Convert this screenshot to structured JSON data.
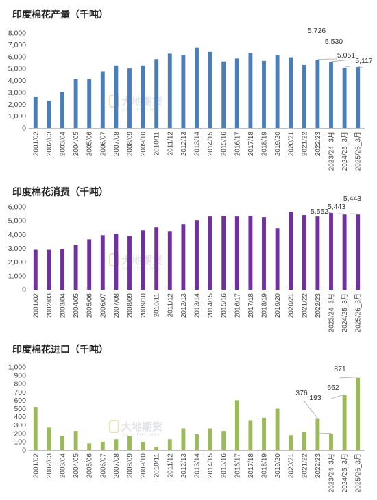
{
  "watermark": {
    "name": "大地期货",
    "sub": "DADI FUTURES"
  },
  "chart_data": [
    {
      "type": "bar",
      "title": "印度棉花产量（千吨）",
      "color": "#4a7ebb",
      "ylim": [
        0,
        8000
      ],
      "yticks": [
        0,
        1000,
        2000,
        3000,
        4000,
        5000,
        6000,
        7000,
        8000
      ],
      "yticklabels": [
        "0",
        "1,000",
        "2,000",
        "3,000",
        "4,000",
        "5,000",
        "6,000",
        "7,000",
        "8,000"
      ],
      "categories": [
        "2001/02",
        "2002/03",
        "2003/04",
        "2004/05",
        "2005/06",
        "2006/07",
        "2007/08",
        "2008/09",
        "2009/10",
        "2010/11",
        "2011/12",
        "2012/13",
        "2013/14",
        "2014/15",
        "2015/16",
        "2016/17",
        "2017/18",
        "2018/19",
        "2019/20",
        "2020/21",
        "2021/22",
        "2022/23",
        "2023/24_3月",
        "2024/25_3月",
        "2025/26_3月"
      ],
      "values": [
        2650,
        2300,
        3050,
        4100,
        4100,
        4750,
        5250,
        5000,
        5250,
        5800,
        6250,
        6150,
        6750,
        6400,
        5600,
        5850,
        6300,
        5650,
        6150,
        5950,
        5300,
        5726,
        5530,
        5051,
        5117
      ],
      "data_labels": [
        {
          "index": 21,
          "text": "5,726"
        },
        {
          "index": 22,
          "text": "5,530"
        },
        {
          "index": 23,
          "text": "5,051"
        },
        {
          "index": 24,
          "text": "5,117"
        }
      ],
      "grid": false,
      "legend": "none"
    },
    {
      "type": "bar",
      "title": "印度棉花消费（千吨）",
      "color": "#7030a0",
      "ylim": [
        0,
        6000
      ],
      "yticks": [
        0,
        1000,
        2000,
        3000,
        4000,
        5000,
        6000
      ],
      "yticklabels": [
        "0",
        "1,000",
        "2,000",
        "3,000",
        "4,000",
        "5,000",
        "6,000"
      ],
      "categories": [
        "2001/02",
        "2002/03",
        "2003/04",
        "2004/05",
        "2005/06",
        "2006/07",
        "2007/08",
        "2008/09",
        "2009/10",
        "2010/11",
        "2011/12",
        "2012/13",
        "2013/14",
        "2014/15",
        "2015/16",
        "2016/17",
        "2017/18",
        "2018/19",
        "2019/20",
        "2020/21",
        "2021/22",
        "2022/23",
        "2023/24_3月",
        "2024/25_3月",
        "2025/26_3月"
      ],
      "values": [
        2900,
        2900,
        2950,
        3250,
        3650,
        3950,
        4050,
        3900,
        4300,
        4500,
        4250,
        4750,
        5050,
        5300,
        5350,
        5300,
        5350,
        5250,
        4450,
        5650,
        5400,
        5300,
        5552,
        5443,
        5443
      ],
      "data_labels": [
        {
          "index": 22,
          "text": "5,552"
        },
        {
          "index": 23,
          "text": "5,443"
        },
        {
          "index": 24,
          "text": "5,443"
        }
      ],
      "grid": false,
      "legend": "none"
    },
    {
      "type": "bar",
      "title": "印度棉花进口（千吨）",
      "color": "#9bbb59",
      "ylim": [
        0,
        1000
      ],
      "yticks": [
        0,
        100,
        200,
        300,
        400,
        500,
        600,
        700,
        800,
        900,
        1000
      ],
      "yticklabels": [
        "0",
        "100",
        "200",
        "300",
        "400",
        "500",
        "600",
        "700",
        "800",
        "900",
        "1,000"
      ],
      "categories": [
        "2001/02",
        "2002/03",
        "2003/04",
        "2004/05",
        "2005/06",
        "2006/07",
        "2007/08",
        "2008/09",
        "2009/10",
        "2010/11",
        "2011/12",
        "2012/13",
        "2013/14",
        "2014/15",
        "2015/16",
        "2016/17",
        "2017/18",
        "2018/19",
        "2019/20",
        "2020/21",
        "2021/22",
        "2022/23",
        "2023/24_3月",
        "2024/25_3月",
        "2025/26_3月"
      ],
      "values": [
        520,
        270,
        170,
        230,
        80,
        100,
        130,
        170,
        100,
        40,
        130,
        260,
        190,
        260,
        230,
        600,
        360,
        390,
        500,
        180,
        220,
        376,
        193,
        662,
        871
      ],
      "data_labels": [
        {
          "index": 21,
          "text": "376"
        },
        {
          "index": 22,
          "text": "193"
        },
        {
          "index": 23,
          "text": "662"
        },
        {
          "index": 24,
          "text": "871"
        }
      ],
      "grid": false,
      "legend": "none"
    }
  ]
}
